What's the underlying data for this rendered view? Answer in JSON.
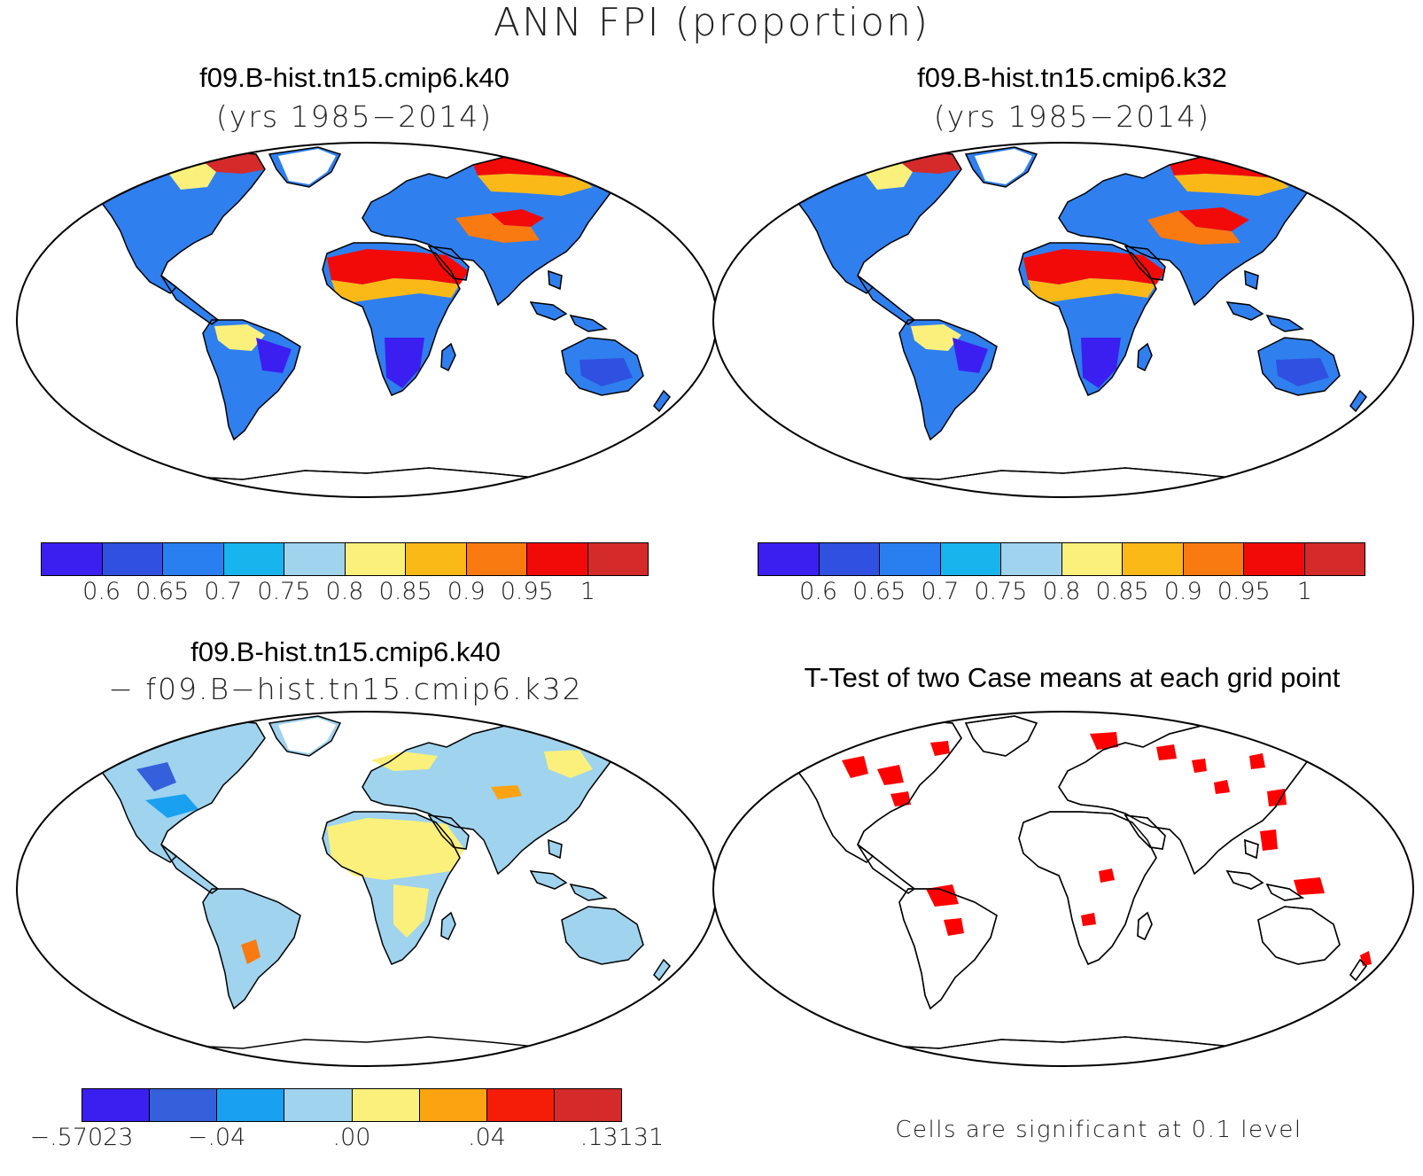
{
  "figure": {
    "title": "ANN FPI (proportion)"
  },
  "panels": [
    {
      "title_line1": "f09.B-hist.tn15.cmip6.k40",
      "title_line2": "(yrs 1985−2014)"
    },
    {
      "title_line1": "f09.B-hist.tn15.cmip6.k32",
      "title_line2": "(yrs 1985−2014)"
    },
    {
      "title_line1": "f09.B-hist.tn15.cmip6.k40",
      "title_line2": "− f09.B−hist.tn15.cmip6.k32"
    },
    {
      "title_line1": "T-Test of two Case means at each grid point",
      "title_line2": ""
    }
  ],
  "colorbars": {
    "mean": {
      "colors": [
        "#3b1ff0",
        "#2f50e0",
        "#2a7ff0",
        "#18b4ee",
        "#9fd3ee",
        "#fbf07c",
        "#fbb917",
        "#f97a11",
        "#f20a08",
        "#d42a2a"
      ],
      "labels": [
        "0.6",
        "0.65",
        "0.7",
        "0.75",
        "0.8",
        "0.85",
        "0.9",
        "0.95",
        "1"
      ]
    },
    "diff": {
      "colors": [
        "#3b1ff0",
        "#3460dc",
        "#1aa0f0",
        "#9fd3ee",
        "#fbf07c",
        "#fba311",
        "#f51c08",
        "#d42a2a"
      ],
      "labels": [
        "−.57023",
        "−.04",
        ".00",
        ".04",
        ".13131"
      ]
    }
  },
  "significance": {
    "note": "Cells are significant at 0.1 level",
    "color": "#ff0000"
  }
}
